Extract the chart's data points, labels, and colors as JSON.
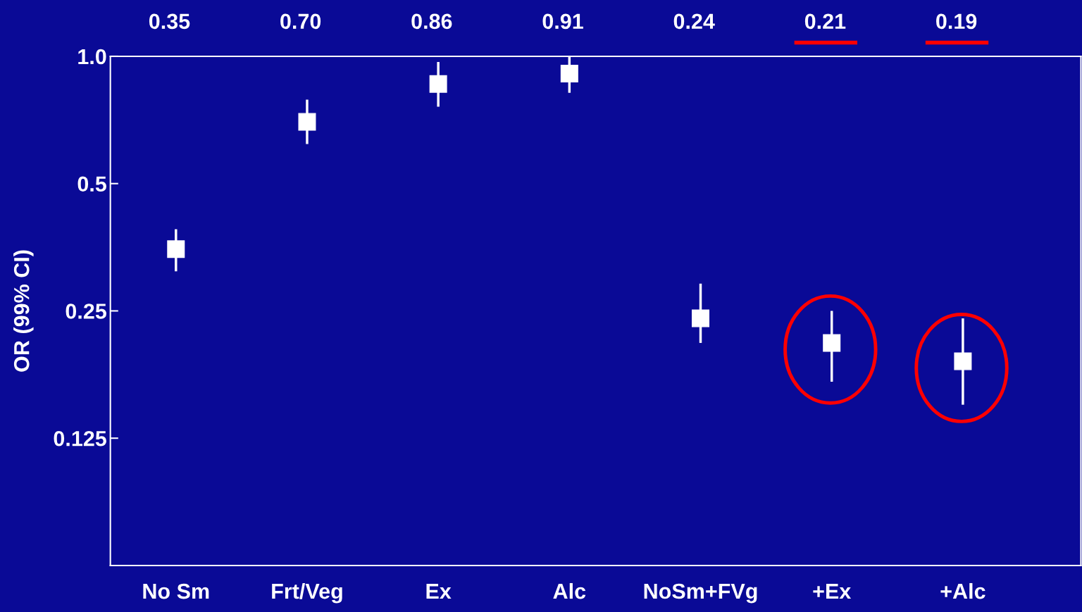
{
  "chart_data": {
    "type": "scatter",
    "ylabel": "OR (99% CI)",
    "categories": [
      "No Sm",
      "Frt/Veg",
      "Ex",
      "Alc",
      "NoSm+FVg",
      "+Ex",
      "+Alc"
    ],
    "series": [
      {
        "color": "#ffffff",
        "values": [
          0.35,
          0.7,
          0.86,
          0.91,
          0.24,
          0.21,
          0.19
        ],
        "errors": [
          [
            0.31,
            0.39
          ],
          [
            0.62,
            0.79
          ],
          [
            0.76,
            0.97
          ],
          [
            0.82,
            1.0
          ],
          [
            0.21,
            0.29
          ],
          [
            0.17,
            0.25
          ],
          [
            0.15,
            0.24
          ]
        ],
        "value_labels": [
          "0.35",
          "0.70",
          "0.86",
          "0.91",
          "0.24",
          "0.21",
          "0.19"
        ]
      }
    ],
    "log": true,
    "ylim": [
      0.0625,
      1.0
    ],
    "yticks": [
      {
        "value": 1.0,
        "label": "1.0"
      },
      0.5,
      0.25,
      0.125
    ],
    "marker": "square",
    "grid": false
  }
}
